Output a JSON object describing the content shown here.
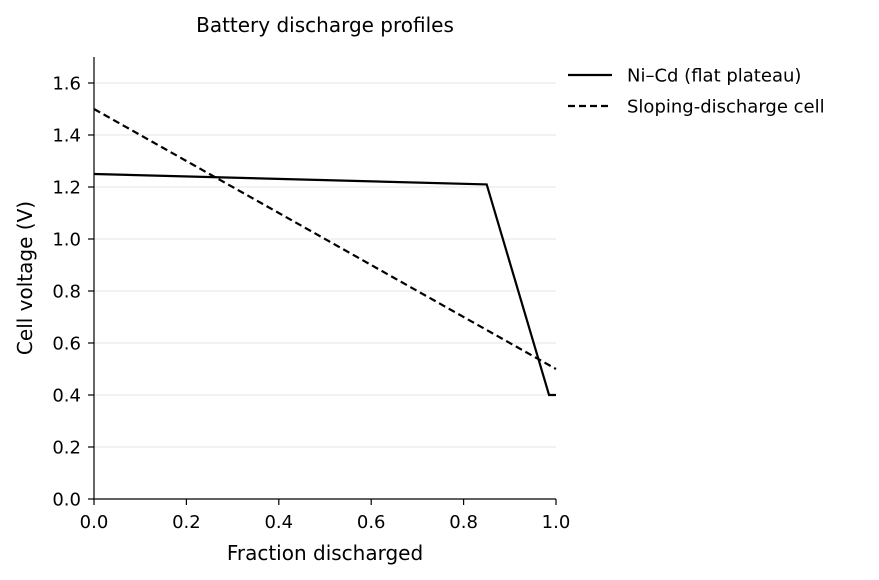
{
  "chart_data": {
    "type": "line",
    "title": "Battery discharge profiles",
    "xlabel": "Fraction discharged",
    "ylabel": "Cell voltage (V)",
    "xlim": [
      0.0,
      1.0
    ],
    "ylim": [
      0.0,
      1.7
    ],
    "x_ticks": [
      0.0,
      0.2,
      0.4,
      0.6,
      0.8,
      1.0
    ],
    "x_tick_labels": [
      "0.0",
      "0.2",
      "0.4",
      "0.6",
      "0.8",
      "1.0"
    ],
    "y_ticks": [
      0.0,
      0.2,
      0.4,
      0.6,
      0.8,
      1.0,
      1.2,
      1.4,
      1.6
    ],
    "y_tick_labels": [
      "0.0",
      "0.2",
      "0.4",
      "0.6",
      "0.8",
      "1.0",
      "1.2",
      "1.4",
      "1.6"
    ],
    "grid": "horizontal",
    "legend_position": "outside-top-right",
    "series": [
      {
        "name": "Ni–Cd (flat plateau)",
        "style": "solid",
        "color": "#000000",
        "x": [
          0.0,
          0.85,
          0.985,
          1.0
        ],
        "y": [
          1.25,
          1.21,
          0.4,
          0.4
        ]
      },
      {
        "name": "Sloping-discharge cell",
        "style": "dashed",
        "color": "#000000",
        "x": [
          0.0,
          1.0
        ],
        "y": [
          1.5,
          0.5
        ]
      }
    ]
  }
}
